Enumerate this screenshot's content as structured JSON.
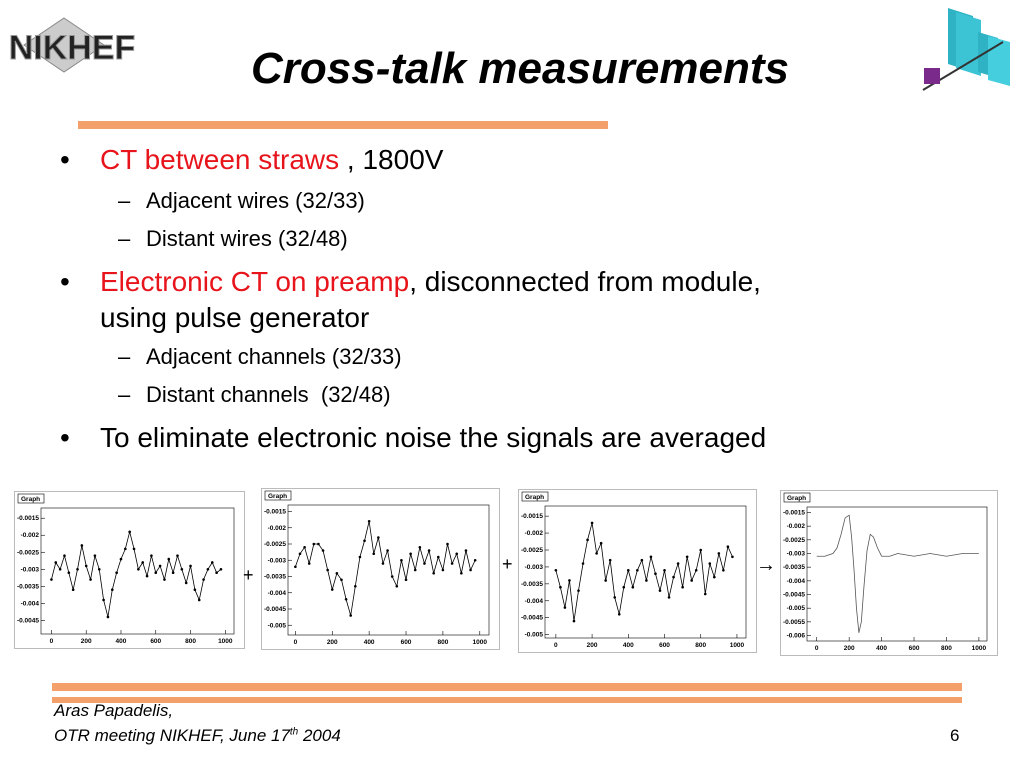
{
  "slide": {
    "logo": "NIKHEF",
    "title": "Cross-talk measurements",
    "bullets": [
      {
        "highlight": "CT between straws",
        "text": " , 1800V",
        "subs": [
          "Adjacent wires (32/33)",
          "Distant wires (32/48)"
        ]
      },
      {
        "highlight": "Electronic CT on preamp",
        "text": ", disconnected from module,",
        "text2": "using pulse generator",
        "subs": [
          "Adjacent channels (32/33)",
          "Distant channels  (32/48)"
        ]
      },
      {
        "text": "To eliminate electronic noise the signals are averaged"
      }
    ],
    "operators": [
      "+",
      "+",
      "→"
    ],
    "footer": {
      "author": "Aras Papadelis,",
      "meeting": "OTR meeting NIKHEF, June 17",
      "sup": "th",
      "year": " 2004",
      "page": "6"
    }
  },
  "chart_data": [
    {
      "type": "line",
      "title": "Graph",
      "markers": true,
      "color": "#000000",
      "x": [
        0,
        25,
        50,
        75,
        100,
        125,
        150,
        175,
        200,
        225,
        250,
        275,
        300,
        325,
        350,
        375,
        400,
        425,
        450,
        475,
        500,
        525,
        550,
        575,
        600,
        625,
        650,
        675,
        700,
        725,
        750,
        775,
        800,
        825,
        850,
        875,
        900,
        925,
        950,
        975
      ],
      "values": [
        -0.0033,
        -0.0028,
        -0.003,
        -0.0026,
        -0.0031,
        -0.0036,
        -0.003,
        -0.0023,
        -0.0029,
        -0.0033,
        -0.0026,
        -0.003,
        -0.0039,
        -0.0044,
        -0.0036,
        -0.0031,
        -0.0027,
        -0.0024,
        -0.0019,
        -0.0024,
        -0.003,
        -0.0028,
        -0.0032,
        -0.0026,
        -0.0031,
        -0.0029,
        -0.0033,
        -0.0027,
        -0.0031,
        -0.0026,
        -0.003,
        -0.0034,
        -0.0029,
        -0.0036,
        -0.0039,
        -0.0033,
        -0.003,
        -0.0028,
        -0.0031,
        -0.003
      ],
      "xlim": [
        -60,
        1050
      ],
      "ylim": [
        -0.0049,
        -0.0012
      ],
      "xticks": [
        0,
        200,
        400,
        600,
        800,
        1000
      ],
      "yticks": [
        -0.0015,
        -0.002,
        -0.0025,
        -0.003,
        -0.0035,
        -0.004,
        -0.0045
      ]
    },
    {
      "type": "line",
      "title": "Graph",
      "markers": true,
      "color": "#000000",
      "x": [
        0,
        25,
        50,
        75,
        100,
        125,
        150,
        175,
        200,
        225,
        250,
        275,
        300,
        325,
        350,
        375,
        400,
        425,
        450,
        475,
        500,
        525,
        550,
        575,
        600,
        625,
        650,
        675,
        700,
        725,
        750,
        775,
        800,
        825,
        850,
        875,
        900,
        925,
        950,
        975
      ],
      "values": [
        -0.0032,
        -0.0028,
        -0.0026,
        -0.0031,
        -0.0025,
        -0.0025,
        -0.0027,
        -0.0033,
        -0.0039,
        -0.0034,
        -0.0036,
        -0.0042,
        -0.0047,
        -0.0038,
        -0.0029,
        -0.0024,
        -0.0018,
        -0.0028,
        -0.0023,
        -0.0031,
        -0.0027,
        -0.0035,
        -0.0038,
        -0.003,
        -0.0036,
        -0.0028,
        -0.0033,
        -0.0026,
        -0.0031,
        -0.0027,
        -0.0034,
        -0.0029,
        -0.0033,
        -0.0025,
        -0.0031,
        -0.0028,
        -0.0034,
        -0.0027,
        -0.0033,
        -0.003
      ],
      "xlim": [
        -40,
        1050
      ],
      "ylim": [
        -0.0053,
        -0.0013
      ],
      "xticks": [
        0,
        200,
        400,
        600,
        800,
        1000
      ],
      "yticks": [
        -0.0015,
        -0.002,
        -0.0025,
        -0.003,
        -0.0035,
        -0.004,
        -0.0045,
        -0.005
      ]
    },
    {
      "type": "line",
      "title": "Graph",
      "markers": true,
      "color": "#000000",
      "x": [
        0,
        25,
        50,
        75,
        100,
        125,
        150,
        175,
        200,
        225,
        250,
        275,
        300,
        325,
        350,
        375,
        400,
        425,
        450,
        475,
        500,
        525,
        550,
        575,
        600,
        625,
        650,
        675,
        700,
        725,
        750,
        775,
        800,
        825,
        850,
        875,
        900,
        925,
        950,
        975
      ],
      "values": [
        -0.0031,
        -0.0036,
        -0.0042,
        -0.0034,
        -0.0046,
        -0.0037,
        -0.0029,
        -0.0022,
        -0.0017,
        -0.0026,
        -0.0023,
        -0.0034,
        -0.0028,
        -0.0039,
        -0.0044,
        -0.0036,
        -0.0031,
        -0.0036,
        -0.0031,
        -0.0028,
        -0.0034,
        -0.0027,
        -0.0032,
        -0.0037,
        -0.0031,
        -0.0039,
        -0.0033,
        -0.0029,
        -0.0036,
        -0.0027,
        -0.0034,
        -0.0031,
        -0.0025,
        -0.0038,
        -0.0029,
        -0.0033,
        -0.0026,
        -0.0031,
        -0.0024,
        -0.0027
      ],
      "xlim": [
        -60,
        1050
      ],
      "ylim": [
        -0.0051,
        -0.0012
      ],
      "xticks": [
        0,
        200,
        400,
        600,
        800,
        1000
      ],
      "yticks": [
        -0.0015,
        -0.002,
        -0.0025,
        -0.003,
        -0.0035,
        -0.004,
        -0.0045,
        -0.005
      ]
    },
    {
      "type": "line",
      "title": "Graph",
      "markers": false,
      "color": "#555555",
      "x": [
        0,
        50,
        100,
        125,
        150,
        175,
        200,
        215,
        230,
        245,
        260,
        275,
        290,
        310,
        330,
        350,
        375,
        400,
        450,
        500,
        600,
        700,
        800,
        900,
        1000
      ],
      "values": [
        -0.0031,
        -0.0031,
        -0.003,
        -0.0028,
        -0.0023,
        -0.0017,
        -0.0016,
        -0.0024,
        -0.0036,
        -0.005,
        -0.0059,
        -0.0055,
        -0.0043,
        -0.0029,
        -0.0023,
        -0.0024,
        -0.0028,
        -0.0031,
        -0.0031,
        -0.003,
        -0.0031,
        -0.003,
        -0.0031,
        -0.003,
        -0.003
      ],
      "xlim": [
        -60,
        1050
      ],
      "ylim": [
        -0.0062,
        -0.0013
      ],
      "xticks": [
        0,
        200,
        400,
        600,
        800,
        1000
      ],
      "yticks": [
        -0.0015,
        -0.002,
        -0.0025,
        -0.003,
        -0.0035,
        -0.004,
        -0.0045,
        -0.005,
        -0.0055,
        -0.006
      ]
    }
  ]
}
